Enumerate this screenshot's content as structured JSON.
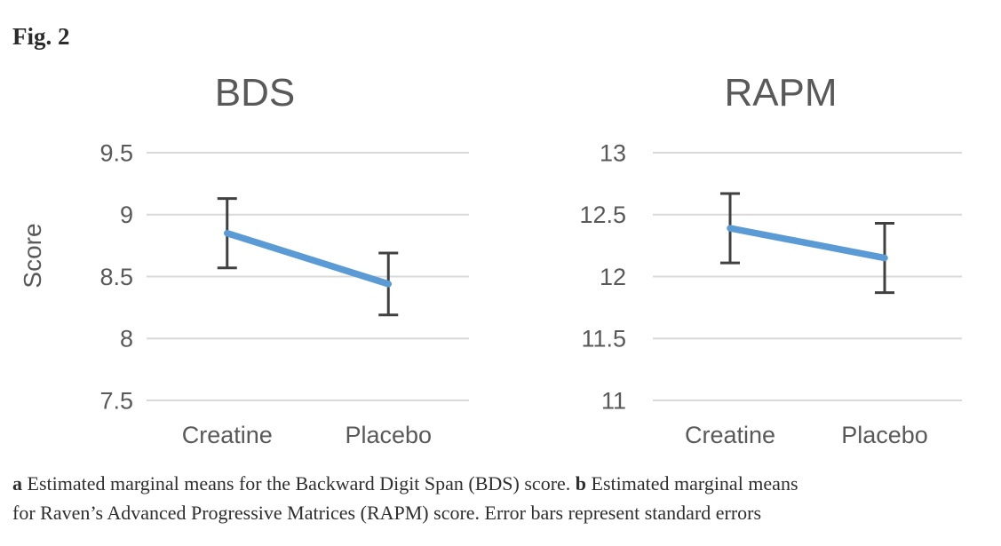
{
  "figure_label": "Fig. 2",
  "colors": {
    "series_blue": "#5b9bd5",
    "error_bar": "#404040",
    "gridline": "#d9d9d9",
    "axis_text": "#595959",
    "caption_text": "#2e2e2e"
  },
  "chart_data": [
    {
      "type": "line",
      "title": "BDS",
      "ylabel": "Score",
      "xlabel": "",
      "categories": [
        "Creatine",
        "Placebo"
      ],
      "values": [
        8.85,
        8.44
      ],
      "std_errors": [
        0.28,
        0.25
      ],
      "yticks": [
        9.5,
        9,
        8.5,
        8,
        7.5
      ],
      "ylim": [
        7.5,
        9.5
      ],
      "grid": true,
      "legend": false,
      "error_bars": "standard errors"
    },
    {
      "type": "line",
      "title": "RAPM",
      "ylabel": "",
      "xlabel": "",
      "categories": [
        "Creatine",
        "Placebo"
      ],
      "values": [
        12.39,
        12.15
      ],
      "std_errors": [
        0.28,
        0.28
      ],
      "yticks": [
        13,
        12.5,
        12,
        11.5,
        11
      ],
      "ylim": [
        11,
        13
      ],
      "grid": true,
      "legend": false,
      "error_bars": "standard errors"
    }
  ],
  "caption": {
    "lines": [
      {
        "segments": [
          {
            "text": "a",
            "bold": true
          },
          {
            "text": " Estimated marginal means for the Backward Digit Span (BDS) score. ",
            "bold": false
          },
          {
            "text": "b",
            "bold": true
          },
          {
            "text": " Estimated marginal means",
            "bold": false
          }
        ]
      },
      {
        "segments": [
          {
            "text": "for Raven’s Advanced Progressive Matrices (RAPM) score. Error bars represent standard errors",
            "bold": false
          }
        ]
      }
    ]
  }
}
